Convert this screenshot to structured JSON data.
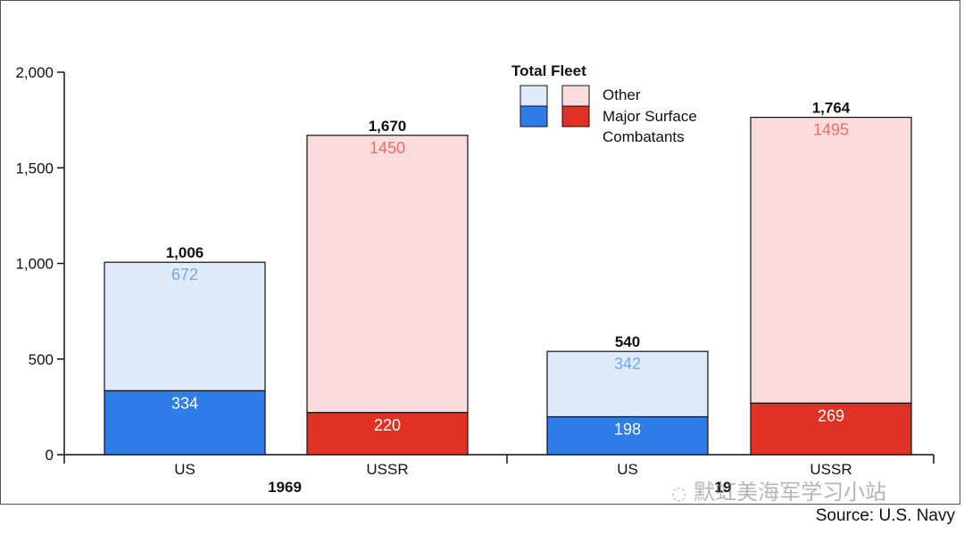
{
  "chart_data": {
    "type": "bar",
    "stacked": true,
    "ylim": [
      0,
      2000
    ],
    "yticks": [
      "0",
      "500",
      "1,000",
      "1,500",
      "2,000"
    ],
    "groups": [
      {
        "label": "1969",
        "bars": [
          {
            "category": "US",
            "total_label": "1,006",
            "major_surface_combatants": 334,
            "other": 672,
            "color_major": "#2f7de8",
            "color_other": "#dfeafa",
            "other_text_color": "#6ea8f0"
          },
          {
            "category": "USSR",
            "total_label": "1,670",
            "major_surface_combatants": 220,
            "other": 1450,
            "color_major": "#e03125",
            "color_other": "#fadcdc",
            "other_text_color": "#ee6e66"
          }
        ]
      },
      {
        "label": "19",
        "bars": [
          {
            "category": "US",
            "total_label": "540",
            "major_surface_combatants": 198,
            "other": 342,
            "color_major": "#2f7de8",
            "color_other": "#dfeafa",
            "other_text_color": "#6ea8f0"
          },
          {
            "category": "USSR",
            "total_label": "1,764",
            "major_surface_combatants": 269,
            "other": 1495,
            "color_major": "#e03125",
            "color_other": "#fadcdc",
            "other_text_color": "#ee6e66"
          }
        ]
      }
    ],
    "legend": {
      "title": "Total Fleet",
      "position": "top-center",
      "entries": [
        {
          "label": "Other"
        },
        {
          "label": "Major Surface Combatants",
          "lines": [
            "Major Surface",
            "Combatants"
          ]
        }
      ]
    }
  },
  "source": "Source: U.S. Navy",
  "watermark": "默虹美海军学习小站"
}
